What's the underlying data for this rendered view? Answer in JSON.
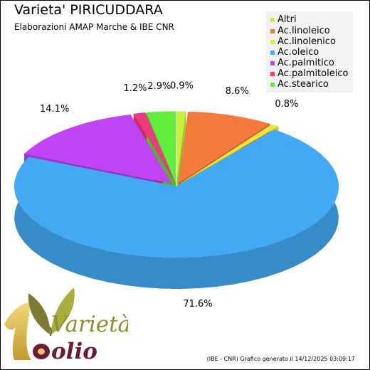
{
  "header": {
    "title": "Varieta' PIRICUDDARA",
    "subtitle": "Elaborazioni AMAP Marche & IBE CNR"
  },
  "footer": {
    "text": "(IBE - CNR) Grafico generato il 14/12/2025 03:09:17"
  },
  "logo": {
    "word1": "Varietà",
    "word2": "olio",
    "numeral": "1"
  },
  "chart_data": {
    "type": "pie",
    "title": "Varieta' PIRICUDDARA",
    "subtitle": "Elaborazioni AMAP Marche & IBE CNR",
    "legend_position": "top-right",
    "slices": [
      {
        "name": "Altri",
        "value": 0.9,
        "label": "0.9%",
        "color": "#c6f03a"
      },
      {
        "name": "Ac.linoleico",
        "value": 8.6,
        "label": "8.6%",
        "color": "#f47a3d"
      },
      {
        "name": "Ac.linolenico",
        "value": 0.8,
        "label": "0.8%",
        "color": "#ece83a"
      },
      {
        "name": "Ac.oleico",
        "value": 71.6,
        "label": "71.6%",
        "color": "#42a9f5"
      },
      {
        "name": "Ac.palmitico",
        "value": 14.1,
        "label": "14.1%",
        "color": "#c043f5"
      },
      {
        "name": "Ac.palmitoleico",
        "value": 1.2,
        "label": "1.2%",
        "color": "#ec3a7d"
      },
      {
        "name": "Ac.stearico",
        "value": 2.9,
        "label": "2.9%",
        "color": "#61ee3a"
      }
    ]
  }
}
